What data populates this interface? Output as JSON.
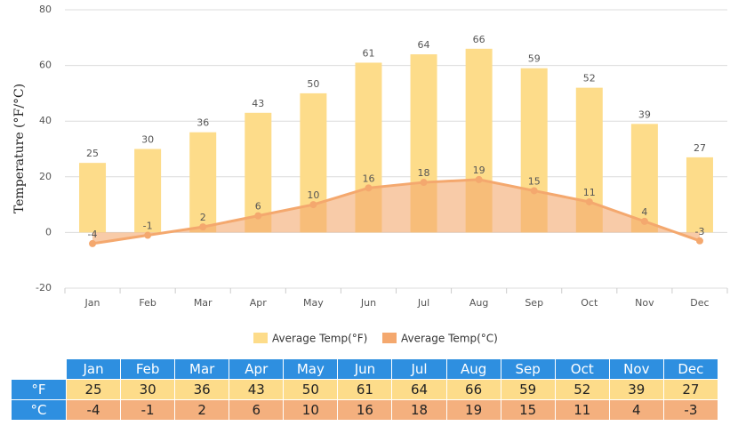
{
  "chart_data": {
    "type": "combo",
    "y_axis_label": "Temperature (°F/°C)",
    "categories": [
      "Jan",
      "Feb",
      "Mar",
      "Apr",
      "May",
      "Jun",
      "Jul",
      "Aug",
      "Sep",
      "Oct",
      "Nov",
      "Dec"
    ],
    "series": [
      {
        "name": "Average Temp(°F)",
        "type": "bar",
        "color": "#fddc8a",
        "values": [
          25,
          30,
          36,
          43,
          50,
          61,
          64,
          66,
          59,
          52,
          39,
          27
        ]
      },
      {
        "name": "Average Temp(°C)",
        "type": "area",
        "color": "#f4a86e",
        "values": [
          -4,
          -1,
          2,
          6,
          10,
          16,
          18,
          19,
          15,
          11,
          4,
          -3
        ]
      }
    ],
    "ylim": [
      -20,
      80
    ],
    "yticks": [
      -20,
      0,
      20,
      40,
      60,
      80
    ],
    "grid": true
  },
  "table": {
    "row_labels": [
      "°F",
      "°C"
    ]
  }
}
